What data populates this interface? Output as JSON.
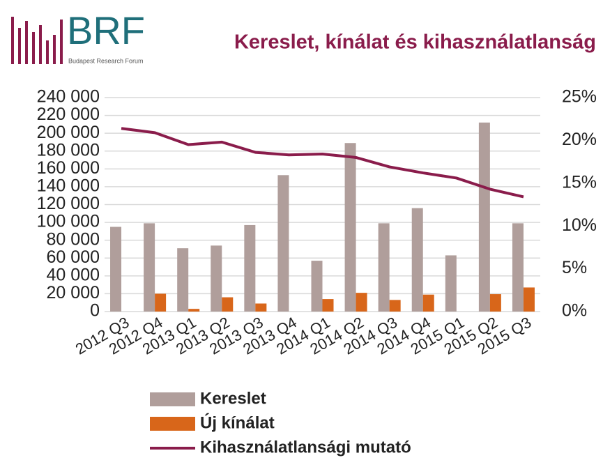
{
  "logo": {
    "text": "BRF",
    "subtitle": "Budapest Research Forum"
  },
  "chart_data": {
    "type": "bar_line",
    "title": "Kereslet, kínálat és kihasználatlanság",
    "categories": [
      "2012 Q3",
      "2012 Q4",
      "2013 Q1",
      "2013 Q2",
      "2013 Q3",
      "2013 Q4",
      "2014 Q1",
      "2014 Q2",
      "2014 Q3",
      "2014 Q4",
      "2015 Q1",
      "2015 Q2",
      "2015 Q3"
    ],
    "series": [
      {
        "name": "Kereslet",
        "type": "bar",
        "color": "#b09e9b",
        "values": [
          95000,
          99000,
          71000,
          74000,
          97000,
          153000,
          57000,
          189000,
          99000,
          116000,
          63000,
          212000,
          99000
        ]
      },
      {
        "name": "Új kínálat",
        "type": "bar",
        "color": "#d8661a",
        "values": [
          0,
          20000,
          3000,
          16000,
          9000,
          0,
          14000,
          21000,
          13000,
          19000,
          0,
          19500,
          27000
        ]
      },
      {
        "name": "Kihasználatlansági mutató",
        "type": "line",
        "axis": "y2",
        "color": "#8a1c4b",
        "values": [
          21.4,
          20.9,
          19.5,
          19.8,
          18.6,
          18.3,
          18.4,
          18.0,
          16.9,
          16.2,
          15.6,
          14.3,
          13.4
        ]
      }
    ],
    "ylim": [
      0,
      240000
    ],
    "yticks": [
      {
        "value": 0,
        "label": "0"
      },
      {
        "value": 20000,
        "label": "20 000"
      },
      {
        "value": 40000,
        "label": "40 000"
      },
      {
        "value": 60000,
        "label": "60 000"
      },
      {
        "value": 80000,
        "label": "80 000"
      },
      {
        "value": 100000,
        "label": "100 000"
      },
      {
        "value": 120000,
        "label": "120 000"
      },
      {
        "value": 140000,
        "label": "140 000"
      },
      {
        "value": 160000,
        "label": "160 000"
      },
      {
        "value": 180000,
        "label": "180 000"
      },
      {
        "value": 200000,
        "label": "200 000"
      },
      {
        "value": 220000,
        "label": "220 000"
      },
      {
        "value": 240000,
        "label": "240 000"
      }
    ],
    "y2lim": [
      0,
      25
    ],
    "y2ticks": [
      {
        "value": 0,
        "label": "0%"
      },
      {
        "value": 5,
        "label": "5%"
      },
      {
        "value": 10,
        "label": "10%"
      },
      {
        "value": 15,
        "label": "15%"
      },
      {
        "value": 20,
        "label": "20%"
      },
      {
        "value": 25,
        "label": "25%"
      }
    ],
    "grid": true,
    "legend": "bottom"
  }
}
